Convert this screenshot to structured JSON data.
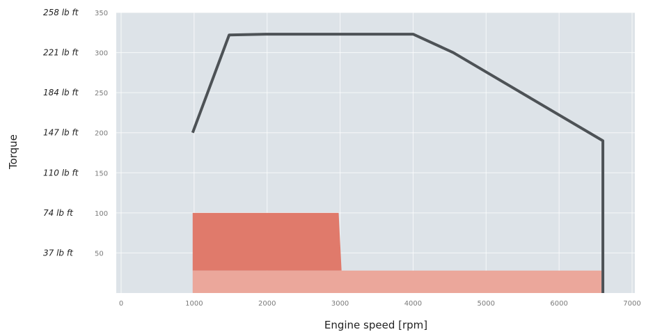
{
  "chart_data": {
    "type": "area",
    "title": "",
    "xlabel": "Engine speed [rpm]",
    "ylabel": "Torque",
    "xlim": [
      0,
      7000
    ],
    "ylim": [
      0,
      350
    ],
    "x_ticks": [
      "0",
      "1000",
      "2000",
      "3000",
      "4000",
      "5000",
      "6000",
      "7000"
    ],
    "y_ticks": [
      "50",
      "100",
      "150",
      "200",
      "250",
      "300",
      "350"
    ],
    "y_ticks_secondary": [
      "37 lb ft",
      "74 lb ft",
      "110 lb ft",
      "147 lb ft",
      "184 lb ft",
      "221 lb ft",
      "258 lb ft"
    ],
    "grid": true,
    "series": [
      {
        "type": "line",
        "color": "#4d5256",
        "points": [
          [
            980,
            200
          ],
          [
            1480,
            322
          ],
          [
            2000,
            323
          ],
          [
            4000,
            323
          ],
          [
            4550,
            300
          ],
          [
            6600,
            190
          ],
          [
            6600,
            0
          ]
        ]
      },
      {
        "type": "area",
        "color": "#e07a6b",
        "points": [
          [
            980,
            0
          ],
          [
            980,
            100
          ],
          [
            2980,
            100
          ],
          [
            3020,
            28
          ],
          [
            980,
            28
          ]
        ]
      },
      {
        "type": "area",
        "color": "#eba79b",
        "points": [
          [
            980,
            0
          ],
          [
            980,
            28
          ],
          [
            6580,
            28
          ],
          [
            6580,
            0
          ]
        ]
      }
    ]
  }
}
